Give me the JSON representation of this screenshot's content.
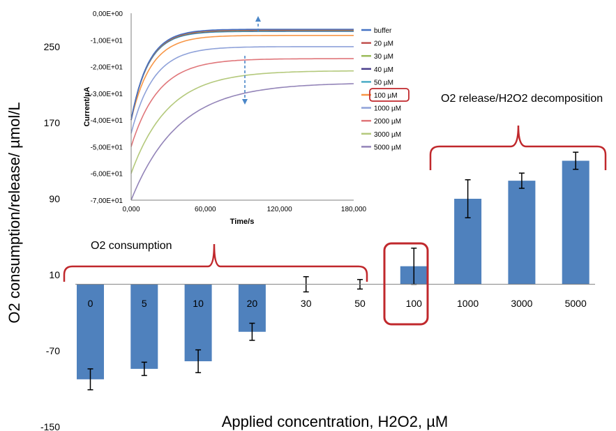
{
  "chart_data": [
    {
      "type": "bar",
      "categories": [
        "0",
        "5",
        "10",
        "20",
        "30",
        "50",
        "100",
        "1000",
        "3000",
        "5000"
      ],
      "values": [
        -100,
        -89,
        -81,
        -50,
        0,
        0,
        19,
        90,
        109,
        130
      ],
      "error": [
        11,
        7,
        12,
        9,
        8,
        5,
        19,
        20,
        8,
        9
      ],
      "ylabel": "O2 consumption/release/ µmol/L",
      "xlabel": "Applied concentration, H2O2, µM",
      "yticks": [
        "250",
        "170",
        "90",
        "10",
        "-70",
        "-150"
      ],
      "ytick_values": [
        250,
        170,
        90,
        10,
        -70,
        -150
      ],
      "ylim": [
        -150,
        250
      ],
      "bar_color": "#4f81bd",
      "annotations": {
        "consumption": "O2 consumption",
        "release": "O2 release/H2O2 decomposition"
      },
      "highlight_category": "100",
      "highlight_color": "#c0282c"
    },
    {
      "type": "line",
      "xlabel": "Time/s",
      "ylabel": "Current/µA",
      "xticks": [
        "0,000",
        "60,000",
        "120,000",
        "180,000"
      ],
      "xtick_values": [
        0,
        60,
        120,
        180
      ],
      "yticks": [
        "0,00E+00",
        "-1,00E+01",
        "-2,00E+01",
        "-3,00E+01",
        "-4,00E+01",
        "-5,00E+01",
        "-6,00E+01",
        "-7,00E+01"
      ],
      "ytick_values": [
        0,
        -10,
        -20,
        -30,
        -40,
        -50,
        -60,
        -70
      ],
      "xlim": [
        0,
        180
      ],
      "ylim": [
        -70,
        0
      ],
      "legend_position": "right",
      "highlight_series": "100 µM",
      "series": [
        {
          "name": "buffer",
          "color": "#4472c4",
          "start": -40,
          "plateau": -6.0,
          "tau": 14
        },
        {
          "name": "20 µM",
          "color": "#c0504d",
          "start": -40,
          "plateau": -6.2,
          "tau": 14
        },
        {
          "name": "30 µM",
          "color": "#9bbb59",
          "start": -40,
          "plateau": -6.4,
          "tau": 14
        },
        {
          "name": "40 µM",
          "color": "#4a3f8c",
          "start": -40,
          "plateau": -6.6,
          "tau": 14
        },
        {
          "name": "50 µM",
          "color": "#4bacc6",
          "start": -40,
          "plateau": -6.8,
          "tau": 14
        },
        {
          "name": "100 µM",
          "color": "#f79646",
          "start": -40,
          "plateau": -8.3,
          "tau": 16
        },
        {
          "name": "1000 µM",
          "color": "#8ea1d9",
          "start": -45,
          "plateau": -12.5,
          "tau": 18
        },
        {
          "name": "2000 µM",
          "color": "#e0767a",
          "start": -50,
          "plateau": -17.0,
          "tau": 22
        },
        {
          "name": "3000 µM",
          "color": "#b4c97c",
          "start": -60,
          "plateau": -21.5,
          "tau": 30
        },
        {
          "name": "5000 µM",
          "color": "#9384b8",
          "start": -70,
          "plateau": -26.0,
          "tau": 38
        }
      ],
      "arrow_color": "#4a86c8"
    }
  ]
}
